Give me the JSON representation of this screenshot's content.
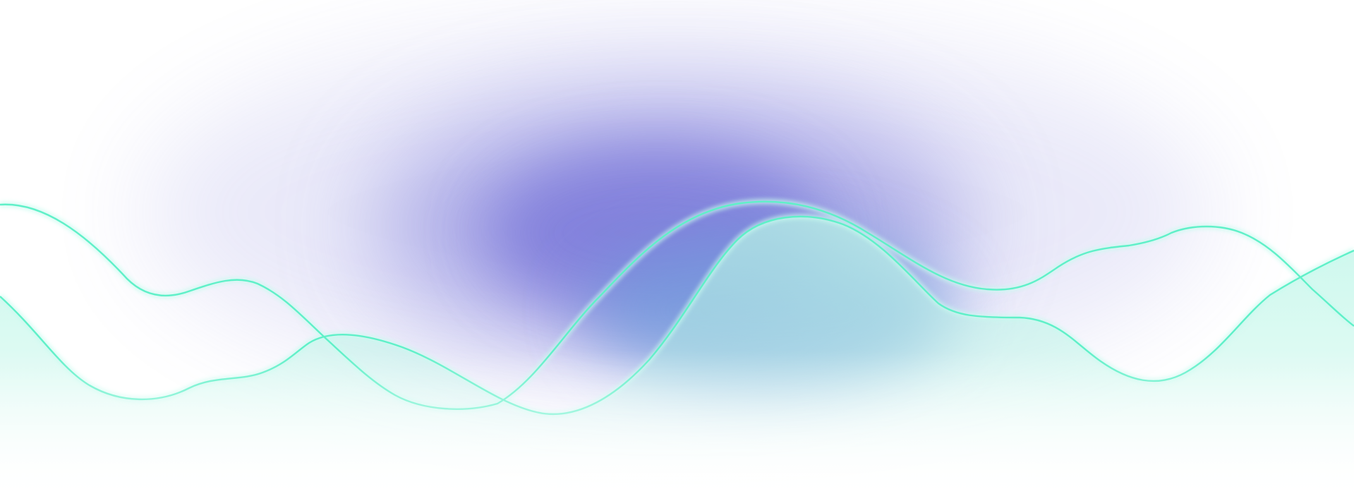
{
  "colors": {
    "background": "#ffffff",
    "glow_purple": "#7d7ada",
    "glow_blue": "#6e9fdc",
    "wave_fill": "#b9f5e6",
    "wave_stroke": "#5ff0c8",
    "wave_glow": "#c8fbef"
  }
}
